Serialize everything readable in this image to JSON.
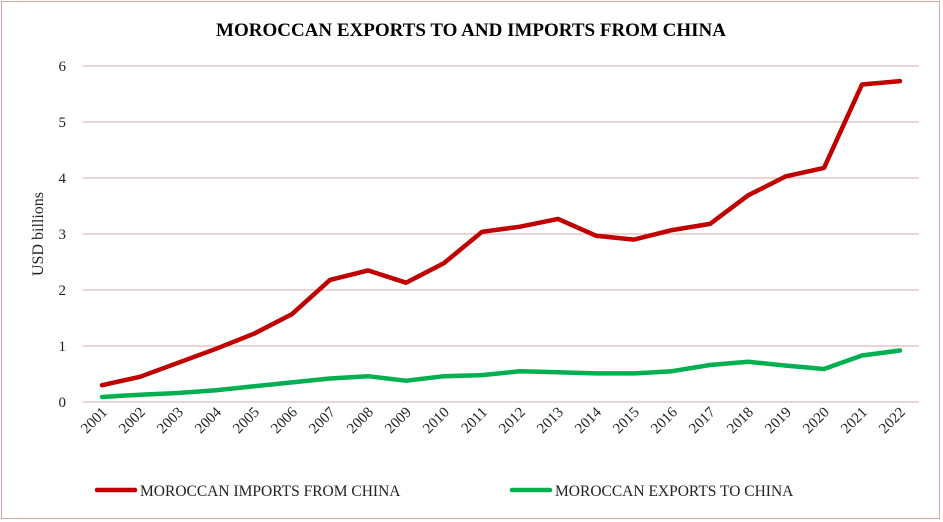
{
  "chart_data": {
    "type": "line",
    "title": "MOROCCAN EXPORTS TO AND IMPORTS FROM CHINA",
    "ylabel": "USD billions",
    "xlabel": "",
    "ylim": [
      0,
      6
    ],
    "yticks": [
      0,
      1,
      2,
      3,
      4,
      5,
      6
    ],
    "grid": true,
    "legend_position": "bottom",
    "categories": [
      "2001",
      "2002",
      "2003",
      "2004",
      "2005",
      "2006",
      "2007",
      "2008",
      "2009",
      "2010",
      "2011",
      "2012",
      "2013",
      "2014",
      "2015",
      "2016",
      "2017",
      "2018",
      "2019",
      "2020",
      "2021",
      "2022"
    ],
    "series": [
      {
        "name": "MOROCCAN IMPORTS FROM CHINA",
        "color": "#c00000",
        "values": [
          0.3,
          0.45,
          0.7,
          0.95,
          1.22,
          1.57,
          2.18,
          2.35,
          2.13,
          2.48,
          3.04,
          3.13,
          3.27,
          2.97,
          2.9,
          3.07,
          3.18,
          3.69,
          4.03,
          4.18,
          5.67,
          5.73
        ]
      },
      {
        "name": "MOROCCAN EXPORTS TO CHINA",
        "color": "#00b050",
        "values": [
          0.09,
          0.13,
          0.16,
          0.21,
          0.28,
          0.35,
          0.42,
          0.46,
          0.38,
          0.46,
          0.48,
          0.55,
          0.53,
          0.51,
          0.51,
          0.55,
          0.66,
          0.72,
          0.65,
          0.59,
          0.83,
          0.92
        ]
      }
    ]
  }
}
